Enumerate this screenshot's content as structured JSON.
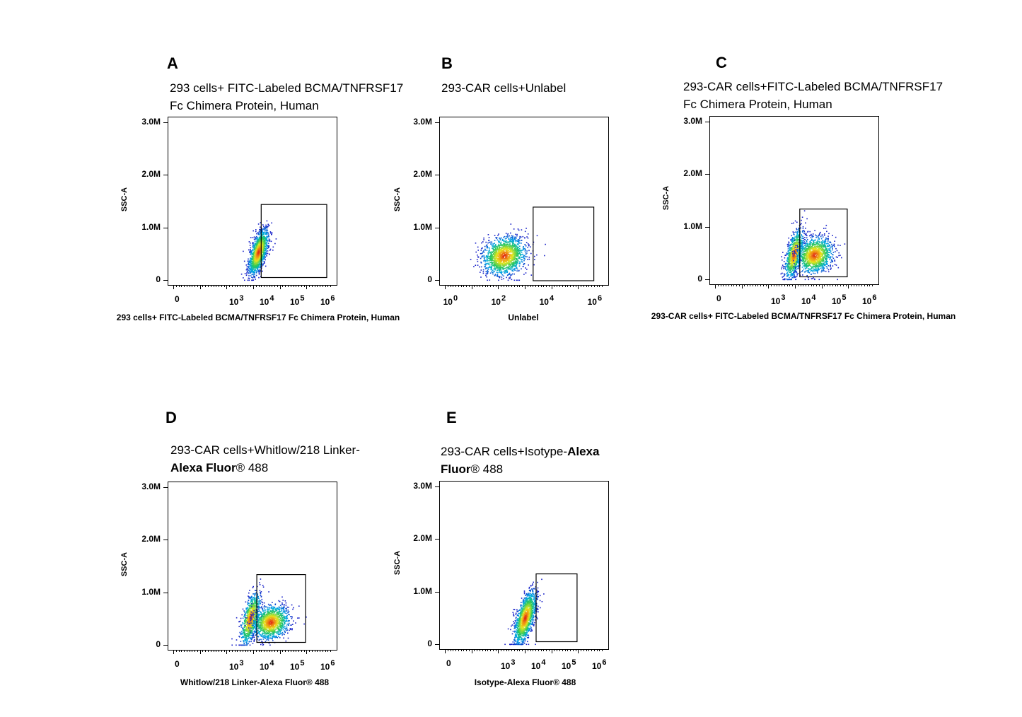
{
  "chart_data": [
    {
      "type": "scatter",
      "panel": "A",
      "title_lines": [
        [
          {
            "text": "293 cells+ FITC-Labeled BCMA/TNFRSF17",
            "bold": false
          }
        ],
        [
          {
            "text": "Fc Chimera Protein, Human",
            "bold": false
          }
        ]
      ],
      "xlabel": "293 cells+ FITC-Labeled BCMA/TNFRSF17 Fc Chimera Protein, Human",
      "ylabel": "SSC-A",
      "yticks": [
        "3.0M",
        "2.0M",
        "1.0M",
        "0"
      ],
      "xticks": [
        {
          "base": "0",
          "exp": ""
        },
        {
          "base": "10",
          "exp": "3"
        },
        {
          "base": "10",
          "exp": "4"
        },
        {
          "base": "10",
          "exp": "5"
        },
        {
          "base": "10",
          "exp": "6"
        }
      ],
      "xscale": "biexponential",
      "ylim": [
        0,
        3000000
      ],
      "gate": {
        "x_range": [
          7000,
          1000000
        ],
        "y_range": [
          60000,
          1450000
        ]
      },
      "populations": [
        {
          "x_center": 5500,
          "y_center": 550000,
          "spread_x": 0.16,
          "spread_y": 170000,
          "tilt": 1.0,
          "count": 1400
        }
      ]
    },
    {
      "type": "scatter",
      "panel": "B",
      "title_lines": [
        [
          {
            "text": "293-CAR cells+Unlabel",
            "bold": false
          }
        ]
      ],
      "xlabel": "Unlabel",
      "ylabel": "SSC-A",
      "yticks": [
        "3.0M",
        "2.0M",
        "1.0M",
        "0"
      ],
      "xticks": [
        {
          "base": "10",
          "exp": "0"
        },
        {
          "base": "10",
          "exp": "2"
        },
        {
          "base": "10",
          "exp": "4"
        },
        {
          "base": "10",
          "exp": "6"
        }
      ],
      "xscale": "log",
      "ylim": [
        0,
        3000000
      ],
      "gate": {
        "x_range": [
          3000,
          1000000
        ],
        "y_range": [
          0,
          1400000
        ]
      },
      "populations": [
        {
          "x_center": 180,
          "y_center": 480000,
          "spread_x": 0.45,
          "spread_y": 180000,
          "tilt": 0.2,
          "count": 1500
        }
      ]
    },
    {
      "type": "scatter",
      "panel": "C",
      "title_lines": [
        [
          {
            "text": "293-CAR cells+FITC-Labeled BCMA/TNFRSF17",
            "bold": false
          }
        ],
        [
          {
            "text": "Fc Chimera Protein, Human",
            "bold": false
          }
        ]
      ],
      "xlabel": "293-CAR cells+ FITC-Labeled BCMA/TNFRSF17 Fc Chimera Protein, Human",
      "ylabel": "SSC-A",
      "yticks": [
        "3.0M",
        "2.0M",
        "1.0M",
        "0"
      ],
      "xticks": [
        {
          "base": "0",
          "exp": ""
        },
        {
          "base": "10",
          "exp": "3"
        },
        {
          "base": "10",
          "exp": "4"
        },
        {
          "base": "10",
          "exp": "5"
        },
        {
          "base": "10",
          "exp": "6"
        }
      ],
      "xscale": "biexponential",
      "ylim": [
        0,
        3000000
      ],
      "gate": {
        "x_range": [
          5500,
          200000
        ],
        "y_range": [
          60000,
          1350000
        ]
      },
      "populations": [
        {
          "x_center": 3500,
          "y_center": 500000,
          "spread_x": 0.15,
          "spread_y": 190000,
          "tilt": 0.9,
          "count": 900
        },
        {
          "x_center": 16000,
          "y_center": 480000,
          "spread_x": 0.3,
          "spread_y": 170000,
          "tilt": 0.2,
          "count": 1300
        }
      ]
    },
    {
      "type": "scatter",
      "panel": "D",
      "title_lines": [
        [
          {
            "text": "293-CAR cells+Whitlow/218 Linker-",
            "bold": false
          }
        ],
        [
          {
            "text": "Alexa Fluor",
            "bold": true
          },
          {
            "text": "® 488",
            "bold": false
          }
        ]
      ],
      "xlabel": "Whitlow/218 Linker-Alexa Fluor® 488",
      "ylabel": "SSC-A",
      "yticks": [
        "3.0M",
        "2.0M",
        "1.0M",
        "0"
      ],
      "xticks": [
        {
          "base": "0",
          "exp": ""
        },
        {
          "base": "10",
          "exp": "3"
        },
        {
          "base": "10",
          "exp": "4"
        },
        {
          "base": "10",
          "exp": "5"
        },
        {
          "base": "10",
          "exp": "6"
        }
      ],
      "xscale": "biexponential",
      "ylim": [
        0,
        3000000
      ],
      "gate": {
        "x_range": [
          5000,
          200000
        ],
        "y_range": [
          60000,
          1350000
        ]
      },
      "populations": [
        {
          "x_center": 3000,
          "y_center": 520000,
          "spread_x": 0.16,
          "spread_y": 200000,
          "tilt": 0.9,
          "count": 900
        },
        {
          "x_center": 14000,
          "y_center": 450000,
          "spread_x": 0.3,
          "spread_y": 160000,
          "tilt": 0.2,
          "count": 1300
        }
      ]
    },
    {
      "type": "scatter",
      "panel": "E",
      "title_lines": [
        [
          {
            "text": "293-CAR  cells+Isotype-",
            "bold": false
          },
          {
            "text": "Alexa",
            "bold": true
          }
        ],
        [
          {
            "text": "Fluor",
            "bold": true
          },
          {
            "text": "® 488",
            "bold": false
          }
        ]
      ],
      "xlabel": "Isotype-Alexa Fluor® 488",
      "ylabel": "SSC-A",
      "yticks": [
        "3.0M",
        "2.0M",
        "1.0M",
        "0"
      ],
      "xticks": [
        {
          "base": "0",
          "exp": ""
        },
        {
          "base": "10",
          "exp": "3"
        },
        {
          "base": "10",
          "exp": "4"
        },
        {
          "base": "10",
          "exp": "5"
        },
        {
          "base": "10",
          "exp": "6"
        }
      ],
      "xscale": "biexponential",
      "ylim": [
        0,
        3000000
      ],
      "gate": {
        "x_range": [
          9000,
          200000
        ],
        "y_range": [
          60000,
          1350000
        ]
      },
      "populations": [
        {
          "x_center": 3800,
          "y_center": 520000,
          "spread_x": 0.18,
          "spread_y": 200000,
          "tilt": 1.0,
          "count": 1400
        }
      ]
    }
  ]
}
